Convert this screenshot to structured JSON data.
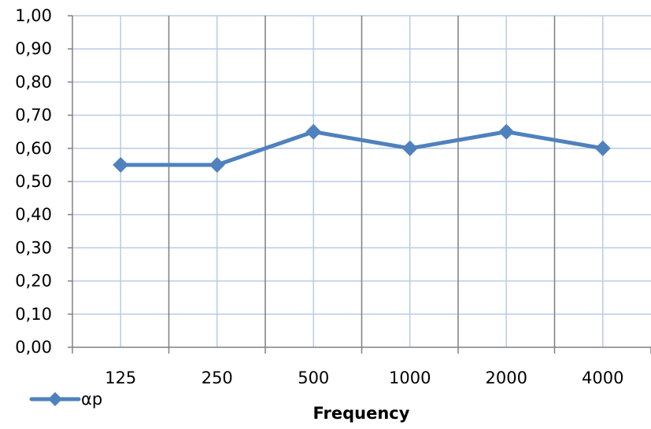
{
  "chart_data": {
    "type": "line",
    "title": "",
    "xlabel": "Frequency",
    "ylabel": "",
    "categories": [
      "125",
      "250",
      "500",
      "1000",
      "2000",
      "4000"
    ],
    "series": [
      {
        "name": "αp",
        "values": [
          0.55,
          0.55,
          0.65,
          0.6,
          0.65,
          0.6
        ]
      }
    ],
    "ylim": [
      0,
      1
    ],
    "ytick_labels": [
      "0,00",
      "0,10",
      "0,20",
      "0,30",
      "0,40",
      "0,50",
      "0,60",
      "0,70",
      "0,80",
      "0,90",
      "1,00"
    ],
    "grid": true,
    "legend": "bottom-left",
    "colors": {
      "series": "#4F81BD",
      "horizontal_grid": "#B8CCE4",
      "vertical_grid": "#7F7F7F",
      "axis": "#808080"
    },
    "marker": "diamond"
  }
}
